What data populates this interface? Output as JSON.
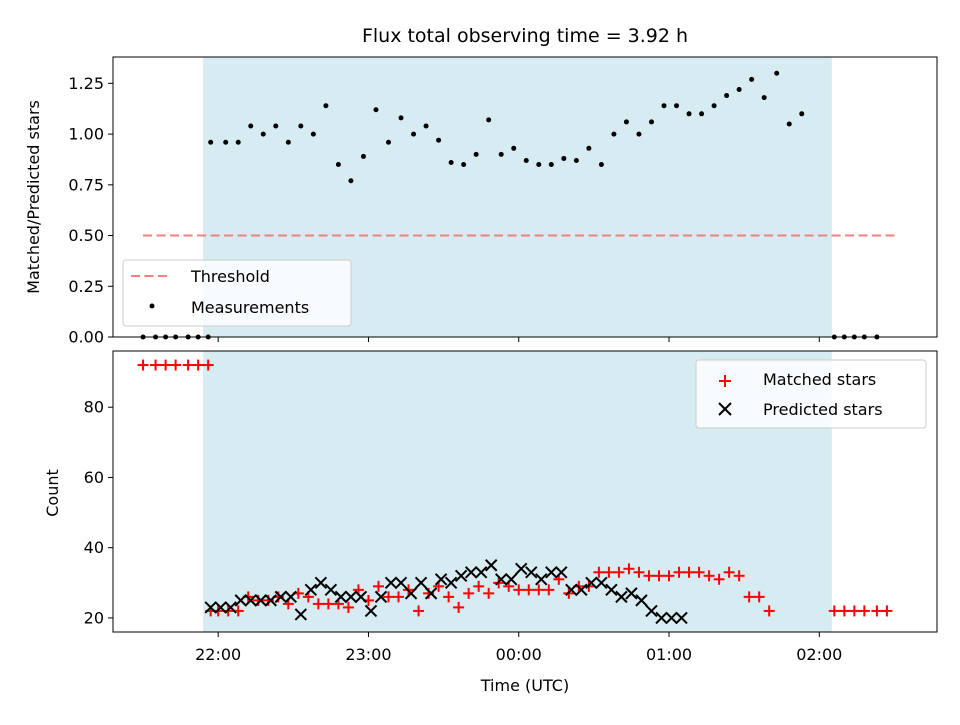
{
  "chart_data": [
    {
      "type": "scatter",
      "title": "Flux total observing time = 3.92 h",
      "xlabel": "",
      "ylabel": "Matched/Predicted stars",
      "x_unit": "time (UTC)",
      "xlim": [
        "21:18",
        "02:47"
      ],
      "ylim": [
        0,
        1.38
      ],
      "yticks": [
        "0.00",
        "0.25",
        "0.50",
        "0.75",
        "1.00",
        "1.25"
      ],
      "shaded_region": {
        "from": "21:54",
        "to": "02:05",
        "color": "#add8e6"
      },
      "legend": {
        "placement": "lower-left",
        "entries": [
          "Threshold",
          "Measurements"
        ]
      },
      "grid": false,
      "threshold": {
        "name": "Threshold",
        "value": 0.5,
        "from": "21:30",
        "to": "02:30",
        "color": "#f08080",
        "style": "dashed"
      },
      "series": [
        {
          "name": "Measurements",
          "color": "#000000",
          "marker": "dot",
          "points": [
            [
              "21:30",
              0.0
            ],
            [
              "21:35",
              0.0
            ],
            [
              "21:39",
              0.0
            ],
            [
              "21:43",
              0.0
            ],
            [
              "21:48",
              0.0
            ],
            [
              "21:52",
              0.0
            ],
            [
              "21:56",
              0.0
            ],
            [
              "21:57",
              0.96
            ],
            [
              "22:03",
              0.96
            ],
            [
              "22:08",
              0.96
            ],
            [
              "22:13",
              1.04
            ],
            [
              "22:18",
              1.0
            ],
            [
              "22:23",
              1.04
            ],
            [
              "22:28",
              0.96
            ],
            [
              "22:33",
              1.04
            ],
            [
              "22:38",
              1.0
            ],
            [
              "22:43",
              1.14
            ],
            [
              "22:48",
              0.85
            ],
            [
              "22:53",
              0.77
            ],
            [
              "22:58",
              0.89
            ],
            [
              "23:03",
              1.12
            ],
            [
              "23:08",
              0.96
            ],
            [
              "23:13",
              1.08
            ],
            [
              "23:18",
              1.0
            ],
            [
              "23:23",
              1.04
            ],
            [
              "23:28",
              0.97
            ],
            [
              "23:33",
              0.86
            ],
            [
              "23:38",
              0.85
            ],
            [
              "23:43",
              0.9
            ],
            [
              "23:48",
              1.07
            ],
            [
              "23:53",
              0.9
            ],
            [
              "23:58",
              0.93
            ],
            [
              "00:03",
              0.87
            ],
            [
              "00:08",
              0.85
            ],
            [
              "00:13",
              0.85
            ],
            [
              "00:18",
              0.88
            ],
            [
              "00:23",
              0.87
            ],
            [
              "00:28",
              0.93
            ],
            [
              "00:33",
              0.85
            ],
            [
              "00:38",
              1.0
            ],
            [
              "00:43",
              1.06
            ],
            [
              "00:48",
              1.0
            ],
            [
              "00:53",
              1.06
            ],
            [
              "00:58",
              1.14
            ],
            [
              "01:03",
              1.14
            ],
            [
              "01:08",
              1.1
            ],
            [
              "01:13",
              1.1
            ],
            [
              "01:18",
              1.14
            ],
            [
              "01:23",
              1.19
            ],
            [
              "01:28",
              1.22
            ],
            [
              "01:33",
              1.27
            ],
            [
              "01:38",
              1.18
            ],
            [
              "01:43",
              1.3
            ],
            [
              "01:48",
              1.05
            ],
            [
              "01:53",
              1.1
            ],
            [
              "02:06",
              0.0
            ],
            [
              "02:10",
              0.0
            ],
            [
              "02:14",
              0.0
            ],
            [
              "02:18",
              0.0
            ],
            [
              "02:23",
              0.0
            ]
          ]
        }
      ]
    },
    {
      "type": "scatter",
      "title": "",
      "xlabel": "Time (UTC)",
      "ylabel": "Count",
      "xlim": [
        "21:18",
        "02:47"
      ],
      "ylim": [
        16,
        96
      ],
      "xticks": [
        "22:00",
        "23:00",
        "00:00",
        "01:00",
        "02:00"
      ],
      "yticks": [
        "20",
        "40",
        "60",
        "80"
      ],
      "shaded_region": {
        "from": "21:54",
        "to": "02:05",
        "color": "#add8e6"
      },
      "legend": {
        "placement": "top-right",
        "entries": [
          "Matched stars",
          "Predicted stars"
        ]
      },
      "grid": false,
      "series": [
        {
          "name": "Matched stars",
          "color": "#ff0000",
          "marker": "plus",
          "points": [
            [
              "21:30",
              92
            ],
            [
              "21:35",
              92
            ],
            [
              "21:39",
              92
            ],
            [
              "21:43",
              92
            ],
            [
              "21:48",
              92
            ],
            [
              "21:52",
              92
            ],
            [
              "21:56",
              92
            ],
            [
              "21:57",
              22
            ],
            [
              "22:00",
              22
            ],
            [
              "22:04",
              22
            ],
            [
              "22:08",
              22
            ],
            [
              "22:12",
              26
            ],
            [
              "22:16",
              25
            ],
            [
              "22:20",
              25
            ],
            [
              "22:24",
              26
            ],
            [
              "22:28",
              24
            ],
            [
              "22:32",
              27
            ],
            [
              "22:36",
              26
            ],
            [
              "22:40",
              24
            ],
            [
              "22:44",
              24
            ],
            [
              "22:48",
              24
            ],
            [
              "22:52",
              23
            ],
            [
              "22:56",
              28
            ],
            [
              "23:00",
              25
            ],
            [
              "23:04",
              29
            ],
            [
              "23:08",
              26
            ],
            [
              "23:12",
              26
            ],
            [
              "23:16",
              28
            ],
            [
              "23:20",
              22
            ],
            [
              "23:24",
              27
            ],
            [
              "23:28",
              29
            ],
            [
              "23:32",
              26
            ],
            [
              "23:36",
              23
            ],
            [
              "23:40",
              27
            ],
            [
              "23:44",
              29
            ],
            [
              "23:48",
              27
            ],
            [
              "23:52",
              30
            ],
            [
              "23:56",
              29
            ],
            [
              "00:00",
              28
            ],
            [
              "00:04",
              28
            ],
            [
              "00:08",
              28
            ],
            [
              "00:12",
              28
            ],
            [
              "00:16",
              31
            ],
            [
              "00:20",
              27
            ],
            [
              "00:24",
              29
            ],
            [
              "00:28",
              29
            ],
            [
              "00:32",
              33
            ],
            [
              "00:36",
              33
            ],
            [
              "00:40",
              33
            ],
            [
              "00:44",
              34
            ],
            [
              "00:48",
              33
            ],
            [
              "00:52",
              32
            ],
            [
              "00:56",
              32
            ],
            [
              "01:00",
              32
            ],
            [
              "01:04",
              33
            ],
            [
              "01:08",
              33
            ],
            [
              "01:12",
              33
            ],
            [
              "01:16",
              32
            ],
            [
              "01:20",
              31
            ],
            [
              "01:24",
              33
            ],
            [
              "01:28",
              32
            ],
            [
              "01:32",
              26
            ],
            [
              "01:36",
              26
            ],
            [
              "01:40",
              22
            ],
            [
              "02:06",
              22
            ],
            [
              "02:10",
              22
            ],
            [
              "02:14",
              22
            ],
            [
              "02:18",
              22
            ],
            [
              "02:23",
              22
            ],
            [
              "02:27",
              22
            ]
          ]
        },
        {
          "name": "Predicted stars",
          "color": "#000000",
          "marker": "x",
          "points": [
            [
              "21:57",
              23
            ],
            [
              "22:01",
              23
            ],
            [
              "22:05",
              23
            ],
            [
              "22:09",
              25
            ],
            [
              "22:13",
              25
            ],
            [
              "22:17",
              25
            ],
            [
              "22:21",
              25
            ],
            [
              "22:25",
              26
            ],
            [
              "22:29",
              26
            ],
            [
              "22:33",
              21
            ],
            [
              "22:37",
              28
            ],
            [
              "22:41",
              30
            ],
            [
              "22:45",
              28
            ],
            [
              "22:49",
              26
            ],
            [
              "22:53",
              26
            ],
            [
              "22:57",
              26
            ],
            [
              "23:01",
              22
            ],
            [
              "23:05",
              26
            ],
            [
              "23:09",
              30
            ],
            [
              "23:13",
              30
            ],
            [
              "23:17",
              27
            ],
            [
              "23:21",
              30
            ],
            [
              "23:25",
              27
            ],
            [
              "23:29",
              31
            ],
            [
              "23:33",
              30
            ],
            [
              "23:37",
              32
            ],
            [
              "23:41",
              33
            ],
            [
              "23:45",
              33
            ],
            [
              "23:49",
              35
            ],
            [
              "23:53",
              31
            ],
            [
              "23:57",
              31
            ],
            [
              "00:01",
              34
            ],
            [
              "00:05",
              33
            ],
            [
              "00:09",
              31
            ],
            [
              "00:13",
              33
            ],
            [
              "00:17",
              33
            ],
            [
              "00:21",
              28
            ],
            [
              "00:25",
              28
            ],
            [
              "00:29",
              30
            ],
            [
              "00:33",
              30
            ],
            [
              "00:37",
              28
            ],
            [
              "00:41",
              26
            ],
            [
              "00:45",
              27
            ],
            [
              "00:49",
              25
            ],
            [
              "00:53",
              22
            ],
            [
              "00:57",
              20
            ],
            [
              "01:01",
              20
            ],
            [
              "01:05",
              20
            ]
          ]
        }
      ]
    }
  ]
}
